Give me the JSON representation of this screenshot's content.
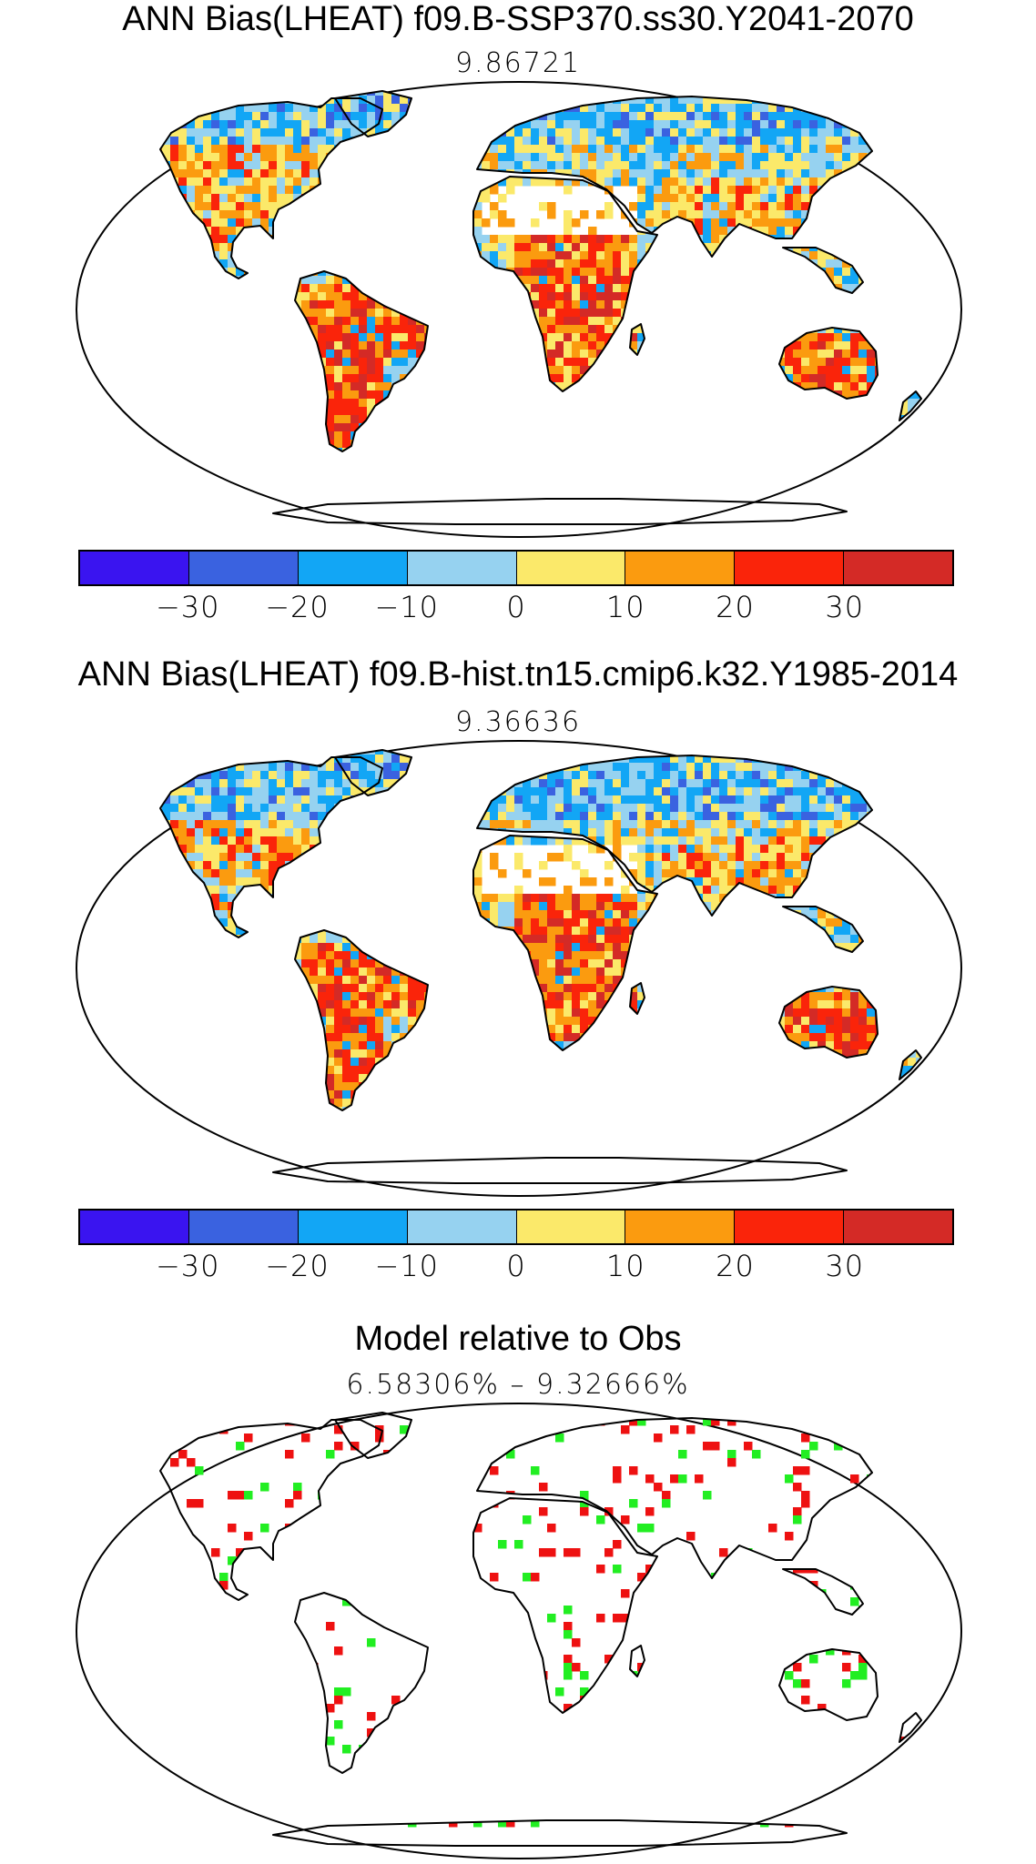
{
  "panels": [
    {
      "title": "ANN Bias(LHEAT) f09.B-SSP370.ss30.Y2041-2070",
      "subtitle": "9.86721",
      "variant": "bias_future"
    },
    {
      "title": "ANN Bias(LHEAT) f09.B-hist.tn15.cmip6.k32.Y1985-2014",
      "subtitle": "9.36636",
      "variant": "bias_hist"
    },
    {
      "title": "Model relative to Obs",
      "subtitle": "6.58306% – 9.32666%",
      "variant": "relative"
    }
  ],
  "colorbar": {
    "colors": [
      "#3a14f0",
      "#3a62e0",
      "#12a6f5",
      "#96d2f0",
      "#fbe96a",
      "#fb9b0f",
      "#fa240a",
      "#d42a26"
    ],
    "labels": [
      "−30",
      "−20",
      "−10",
      "0",
      "10",
      "20",
      "30"
    ]
  },
  "relative_colors": {
    "better": "#22ee22",
    "worse": "#ee1111"
  }
}
